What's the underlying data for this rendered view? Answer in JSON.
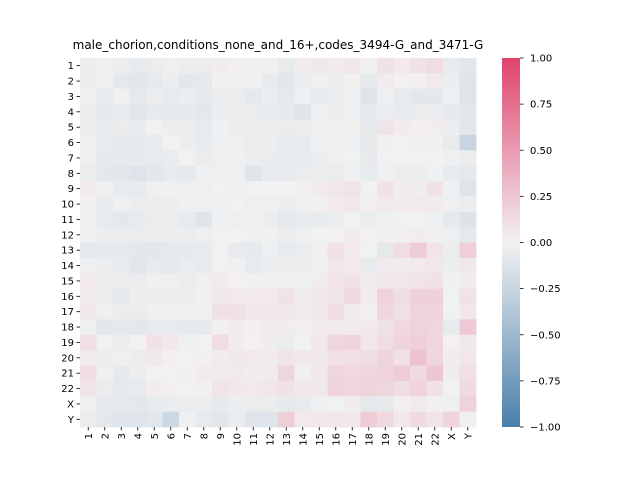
{
  "chart_data": {
    "type": "heatmap",
    "title": "male_chorion,conditions_none_and_16+,codes_3494-G_and_3471-G",
    "xlabel": "",
    "ylabel": "",
    "x_labels": [
      "1",
      "2",
      "3",
      "4",
      "5",
      "6",
      "7",
      "8",
      "9",
      "10",
      "11",
      "12",
      "13",
      "14",
      "15",
      "16",
      "17",
      "18",
      "19",
      "20",
      "21",
      "22",
      "X",
      "Y"
    ],
    "y_labels": [
      "1",
      "2",
      "3",
      "4",
      "5",
      "6",
      "7",
      "8",
      "9",
      "10",
      "11",
      "12",
      "13",
      "14",
      "15",
      "16",
      "17",
      "18",
      "19",
      "20",
      "21",
      "22",
      "X",
      "Y"
    ],
    "value_range": [
      -1.0,
      1.0
    ],
    "colorbar": {
      "ticks": [
        1.0,
        0.75,
        0.5,
        0.25,
        0.0,
        -0.25,
        -0.5,
        -0.75,
        -1.0
      ],
      "tick_labels": [
        "1.00",
        "0.75",
        "0.50",
        "0.25",
        "0.00",
        "−0.25",
        "−0.50",
        "−0.75",
        "−1.00"
      ],
      "colors": {
        "negative": "#4a7fab",
        "zero": "#f2f2f2",
        "positive": "#e0436f"
      }
    },
    "values": [
      [
        -0.05,
        -0.02,
        -0.04,
        -0.06,
        -0.05,
        -0.03,
        -0.04,
        -0.05,
        0.03,
        0.02,
        0.02,
        0.02,
        -0.06,
        0.03,
        0.06,
        0.04,
        0.07,
        0.02,
        0.09,
        0.05,
        0.09,
        0.12,
        -0.06,
        -0.1
      ],
      [
        -0.04,
        -0.03,
        -0.08,
        -0.1,
        -0.07,
        -0.04,
        -0.09,
        -0.08,
        0.02,
        -0.03,
        -0.02,
        -0.06,
        -0.1,
        -0.04,
        0.02,
        -0.04,
        0.02,
        -0.08,
        0.04,
        0.01,
        0.02,
        0.05,
        -0.04,
        -0.12
      ],
      [
        -0.03,
        -0.06,
        -0.02,
        -0.08,
        -0.04,
        -0.06,
        -0.04,
        -0.08,
        -0.04,
        -0.04,
        -0.08,
        -0.04,
        -0.08,
        -0.02,
        -0.06,
        -0.04,
        -0.02,
        -0.12,
        -0.03,
        -0.06,
        -0.09,
        -0.09,
        -0.03,
        -0.12
      ],
      [
        -0.05,
        -0.07,
        -0.06,
        -0.1,
        -0.07,
        -0.08,
        -0.07,
        -0.09,
        -0.04,
        -0.05,
        -0.05,
        -0.06,
        -0.07,
        -0.11,
        -0.03,
        -0.05,
        -0.03,
        -0.07,
        -0.04,
        -0.06,
        -0.05,
        -0.05,
        -0.07,
        -0.1
      ],
      [
        -0.04,
        -0.06,
        -0.05,
        -0.06,
        0.01,
        -0.04,
        -0.05,
        -0.06,
        -0.02,
        -0.04,
        -0.04,
        -0.04,
        -0.05,
        -0.04,
        -0.02,
        -0.02,
        0.02,
        -0.08,
        0.08,
        0.04,
        0.02,
        0.03,
        -0.04,
        -0.1
      ],
      [
        -0.02,
        -0.06,
        -0.07,
        -0.08,
        -0.06,
        0.01,
        -0.04,
        -0.06,
        -0.03,
        -0.03,
        -0.05,
        -0.04,
        -0.06,
        -0.06,
        -0.02,
        -0.03,
        -0.02,
        -0.07,
        0.02,
        0.01,
        0.02,
        0.02,
        -0.06,
        -0.25
      ],
      [
        -0.03,
        -0.08,
        -0.07,
        -0.07,
        -0.06,
        -0.05,
        0.01,
        -0.05,
        -0.03,
        -0.03,
        -0.04,
        -0.05,
        -0.06,
        -0.06,
        -0.04,
        -0.03,
        -0.01,
        -0.07,
        0.01,
        0.01,
        0.01,
        0.01,
        -0.03,
        -0.04
      ],
      [
        -0.05,
        -0.09,
        -0.1,
        -0.12,
        -0.09,
        -0.06,
        -0.07,
        -0.02,
        -0.03,
        -0.03,
        -0.11,
        -0.06,
        -0.06,
        -0.05,
        -0.04,
        -0.05,
        -0.03,
        -0.06,
        -0.03,
        -0.05,
        -0.04,
        -0.02,
        -0.06,
        -0.08
      ],
      [
        0.04,
        -0.03,
        -0.06,
        -0.06,
        -0.03,
        -0.02,
        -0.03,
        -0.03,
        -0.01,
        -0.02,
        -0.01,
        -0.01,
        0.01,
        0.02,
        0.04,
        0.07,
        0.08,
        -0.01,
        0.09,
        0.03,
        0.03,
        0.09,
        -0.02,
        -0.12
      ],
      [
        0.02,
        -0.06,
        -0.03,
        -0.05,
        -0.04,
        -0.04,
        -0.03,
        -0.03,
        -0.02,
        -0.01,
        -0.03,
        -0.03,
        -0.04,
        -0.03,
        0.02,
        0.05,
        0.07,
        0.02,
        0.05,
        0.04,
        0.05,
        0.04,
        -0.03,
        -0.04
      ],
      [
        -0.03,
        -0.06,
        -0.09,
        -0.06,
        -0.05,
        -0.05,
        -0.06,
        -0.11,
        -0.02,
        -0.03,
        -0.03,
        -0.04,
        -0.08,
        -0.06,
        -0.06,
        -0.04,
        -0.01,
        -0.05,
        -0.03,
        -0.01,
        0.01,
        -0.03,
        -0.07,
        -0.13
      ],
      [
        -0.02,
        -0.04,
        -0.05,
        -0.05,
        -0.04,
        -0.04,
        -0.04,
        -0.03,
        -0.01,
        -0.01,
        -0.02,
        -0.02,
        -0.04,
        -0.03,
        -0.01,
        0.01,
        0.03,
        0.01,
        0.02,
        0.02,
        0.03,
        0.02,
        -0.03,
        -0.08
      ],
      [
        -0.08,
        -0.07,
        -0.07,
        -0.09,
        -0.09,
        -0.08,
        -0.07,
        -0.06,
        0.01,
        -0.06,
        -0.07,
        -0.03,
        -0.06,
        -0.05,
        0.02,
        0.09,
        0.05,
        -0.01,
        -0.08,
        0.12,
        0.22,
        0.08,
        -0.04,
        0.2
      ],
      [
        -0.03,
        -0.04,
        -0.06,
        -0.1,
        -0.06,
        -0.08,
        -0.05,
        -0.06,
        0.01,
        -0.02,
        -0.06,
        -0.04,
        -0.04,
        -0.04,
        0.02,
        0.07,
        0.05,
        -0.06,
        0.04,
        0.04,
        0.05,
        0.07,
        -0.04,
        0.06
      ],
      [
        0.05,
        -0.04,
        -0.04,
        -0.05,
        -0.03,
        -0.03,
        -0.05,
        -0.03,
        0.04,
        0.01,
        -0.02,
        0.02,
        -0.03,
        -0.03,
        0.03,
        0.08,
        0.09,
        0.03,
        0.06,
        0.07,
        0.08,
        0.1,
        -0.02,
        0.03
      ],
      [
        0.04,
        -0.05,
        -0.08,
        -0.04,
        -0.04,
        -0.04,
        -0.04,
        0.02,
        0.06,
        0.05,
        0.05,
        0.05,
        0.09,
        0.03,
        0.06,
        0.08,
        0.15,
        0.04,
        0.18,
        0.12,
        0.19,
        0.19,
        -0.01,
        0.09
      ],
      [
        0.06,
        -0.03,
        -0.05,
        -0.05,
        -0.03,
        -0.03,
        -0.02,
        0.02,
        0.1,
        0.1,
        0.06,
        0.06,
        0.06,
        0.04,
        0.06,
        0.12,
        0.03,
        0.02,
        0.16,
        0.1,
        0.18,
        0.17,
        -0.01,
        0.07
      ],
      [
        -0.03,
        -0.1,
        -0.08,
        -0.09,
        -0.06,
        -0.06,
        -0.07,
        -0.07,
        0.02,
        0.03,
        0.02,
        0.04,
        0.03,
        0.02,
        0.04,
        0.05,
        0.04,
        0.05,
        0.09,
        0.15,
        0.18,
        0.16,
        -0.06,
        0.24
      ],
      [
        0.11,
        -0.01,
        -0.04,
        0.01,
        0.09,
        0.06,
        -0.02,
        0.01,
        0.12,
        0.03,
        0.01,
        0.03,
        -0.05,
        -0.01,
        0.06,
        0.16,
        0.18,
        0.07,
        0.12,
        0.17,
        0.2,
        0.16,
        0.01,
        0.06
      ],
      [
        0.04,
        -0.04,
        -0.03,
        -0.05,
        0.06,
        0.02,
        0.01,
        0.02,
        0.04,
        0.06,
        0.05,
        0.04,
        0.08,
        0.06,
        0.06,
        0.11,
        0.11,
        0.12,
        0.17,
        0.1,
        0.28,
        0.16,
        0.03,
        0.07
      ],
      [
        0.12,
        -0.03,
        -0.07,
        -0.04,
        0.01,
        0.01,
        0.02,
        0.04,
        0.04,
        0.05,
        0.03,
        0.04,
        0.16,
        0.02,
        0.06,
        0.16,
        0.15,
        0.16,
        0.18,
        0.22,
        0.13,
        0.25,
        0.03,
        0.11
      ],
      [
        0.08,
        -0.05,
        -0.08,
        -0.06,
        0.03,
        0.02,
        0.01,
        -0.02,
        0.08,
        0.06,
        0.05,
        0.07,
        0.09,
        0.06,
        0.06,
        0.17,
        0.16,
        0.18,
        0.16,
        0.12,
        0.18,
        0.1,
        0.01,
        0.13
      ],
      [
        -0.03,
        -0.08,
        -0.08,
        -0.09,
        -0.06,
        -0.05,
        -0.05,
        -0.04,
        -0.07,
        -0.04,
        -0.05,
        -0.05,
        -0.07,
        -0.06,
        -0.02,
        -0.01,
        0.03,
        -0.08,
        -0.08,
        0.02,
        0.04,
        0.02,
        -0.03,
        0.18
      ],
      [
        -0.05,
        -0.09,
        -0.12,
        -0.12,
        -0.1,
        -0.22,
        -0.03,
        -0.06,
        -0.1,
        -0.05,
        -0.12,
        -0.12,
        0.2,
        0.05,
        0.06,
        0.07,
        0.06,
        0.22,
        0.15,
        0.06,
        0.13,
        0.08,
        0.17,
        -0.03
      ]
    ]
  }
}
